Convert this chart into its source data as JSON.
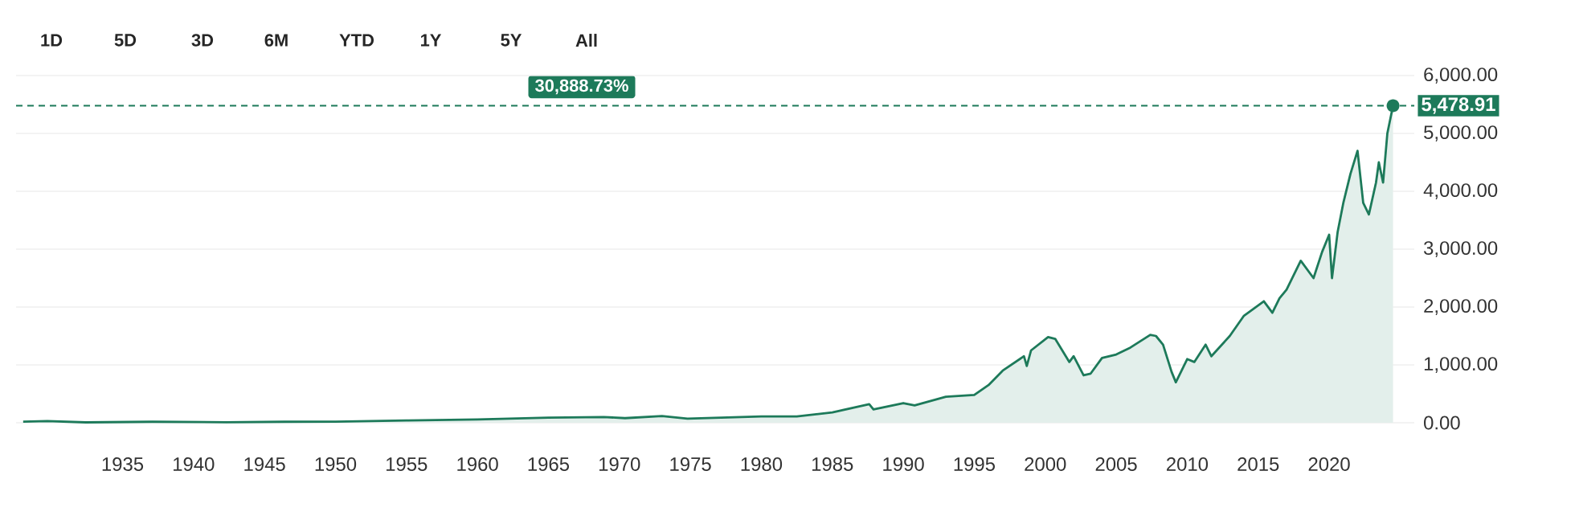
{
  "chart_data": {
    "type": "area",
    "annotations": [
      "1D",
      "5D",
      "3D",
      "6M",
      "YTD",
      "1Y",
      "5Y",
      "All",
      "30,888.73%"
    ],
    "x": [
      1928,
      1929.7,
      1932.4,
      1937.1,
      1942.3,
      1946.4,
      1950,
      1955,
      1960,
      1965,
      1968.9,
      1970.4,
      1973,
      1974.8,
      1980,
      1982.5,
      1985,
      1987.6,
      1987.9,
      1990,
      1990.8,
      1993,
      1995,
      1996,
      1997,
      1998.5,
      1998.7,
      1999,
      2000.2,
      2000.7,
      2001.7,
      2002,
      2002.7,
      2003.2,
      2004,
      2005,
      2006,
      2007.4,
      2007.8,
      2008.3,
      2008.9,
      2009.2,
      2010,
      2010.5,
      2011.3,
      2011.7,
      2013,
      2014,
      2015.4,
      2016,
      2016.5,
      2017,
      2018,
      2018.9,
      2019.5,
      2020,
      2020.2,
      2020.6,
      2021,
      2021.5,
      2022,
      2022.4,
      2022.8,
      2023.3,
      2023.5,
      2023.8,
      2024.1,
      2024.5
    ],
    "series": [
      {
        "color": "#1d7a5a",
        "values": [
          20,
          30,
          7,
          17,
          9,
          17,
          18,
          40,
          58,
          88,
          100,
          80,
          115,
          70,
          110,
          110,
          180,
          320,
          230,
          340,
          300,
          450,
          480,
          650,
          900,
          1150,
          980,
          1250,
          1480,
          1450,
          1050,
          1150,
          820,
          850,
          1120,
          1180,
          1300,
          1520,
          1500,
          1350,
          880,
          700,
          1100,
          1050,
          1350,
          1150,
          1500,
          1850,
          2100,
          1900,
          2150,
          2300,
          2800,
          2500,
          2950,
          3250,
          2500,
          3300,
          3800,
          4300,
          4700,
          3800,
          3600,
          4150,
          4500,
          4150,
          5000,
          5478.91
        ]
      }
    ],
    "xlim": [
      1927.5,
      2026
    ],
    "ylim": [
      0,
      6000
    ],
    "xticks": [
      1935,
      1940,
      1945,
      1950,
      1955,
      1960,
      1965,
      1970,
      1975,
      1980,
      1985,
      1990,
      1995,
      2000,
      2005,
      2010,
      2015,
      2020
    ],
    "yticks": [
      {
        "value": 0,
        "label": "0.00"
      },
      {
        "value": 1000,
        "label": "1,000.00"
      },
      {
        "value": 2000,
        "label": "2,000.00"
      },
      {
        "value": 3000,
        "label": "3,000.00"
      },
      {
        "value": 4000,
        "label": "4,000.00"
      },
      {
        "value": 5000,
        "label": "5,000.00"
      },
      {
        "value": 6000,
        "label": "6,000.00"
      }
    ],
    "grid": "y",
    "ref_lines": [
      {
        "axis": "y",
        "value": 5478.91,
        "label": "5,478.91",
        "color": "#1d7a5a",
        "line_style": "dashed"
      }
    ]
  }
}
